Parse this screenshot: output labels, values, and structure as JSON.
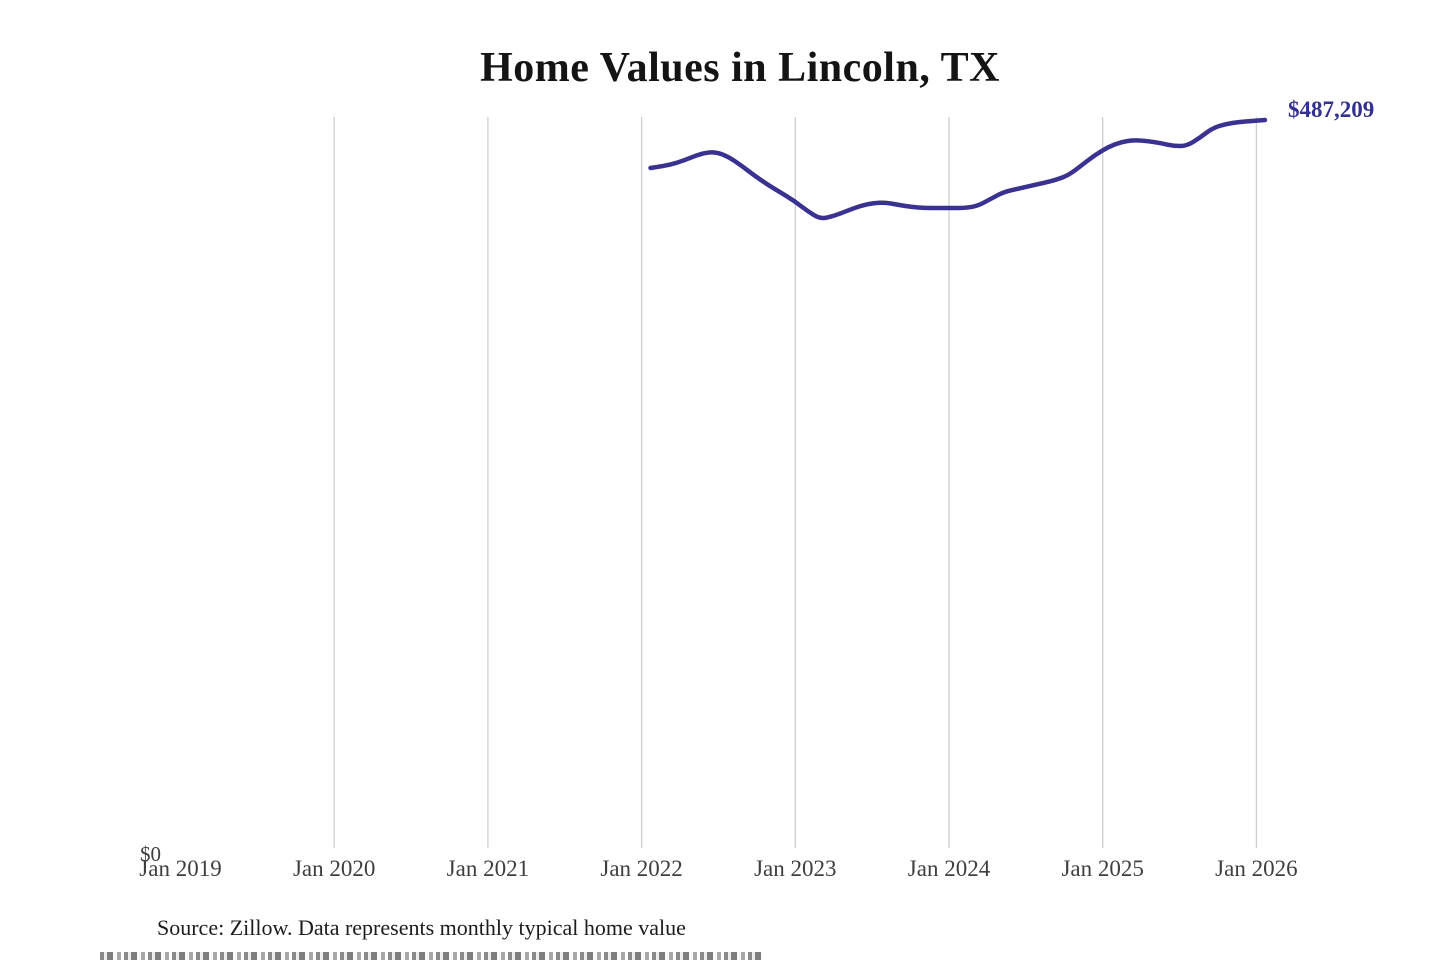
{
  "header": {
    "title": "Home Values in Lincoln, TX"
  },
  "chart_data": {
    "type": "line",
    "title": "Home Values in Lincoln, TX",
    "grid": "vertical-only",
    "legend": "none",
    "x_tick_labels": [
      "Jan 2019",
      "Jan 2020",
      "Jan 2021",
      "Jan 2022",
      "Jan 2023",
      "Jan 2024",
      "Jan 2025",
      "Jan 2026"
    ],
    "y_axis": {
      "min": 0,
      "min_label": "$0",
      "max": 490000
    },
    "end_label": "$487,209",
    "latest_value": 487209,
    "series": [
      {
        "name": "Monthly typical home value",
        "color": "#3a3291",
        "start_month": "2022-02",
        "end_month": "2026-01",
        "values": [
          455100,
          456400,
          458400,
          461700,
          465100,
          465900,
          462400,
          456400,
          449700,
          443700,
          438400,
          433000,
          426300,
          420900,
          422900,
          426300,
          429600,
          431600,
          432000,
          430300,
          429000,
          428300,
          428300,
          428300,
          428300,
          429600,
          434300,
          439000,
          441000,
          443000,
          445000,
          447100,
          450400,
          457100,
          463800,
          469100,
          472500,
          473800,
          473100,
          471800,
          469800,
          469800,
          475200,
          481900,
          484500,
          485900,
          486500,
          487209
        ]
      }
    ]
  },
  "footer": {
    "source_note": "Source: Zillow. Data represents monthly typical home value"
  },
  "colors": {
    "line": "#3a3291",
    "end_label_text": "#33308f",
    "gridline": "#cfcfcf",
    "axis_text": "#3f3f3f",
    "title_text": "#141414",
    "source_text": "#1c1c1c",
    "background": "#ffffff"
  }
}
